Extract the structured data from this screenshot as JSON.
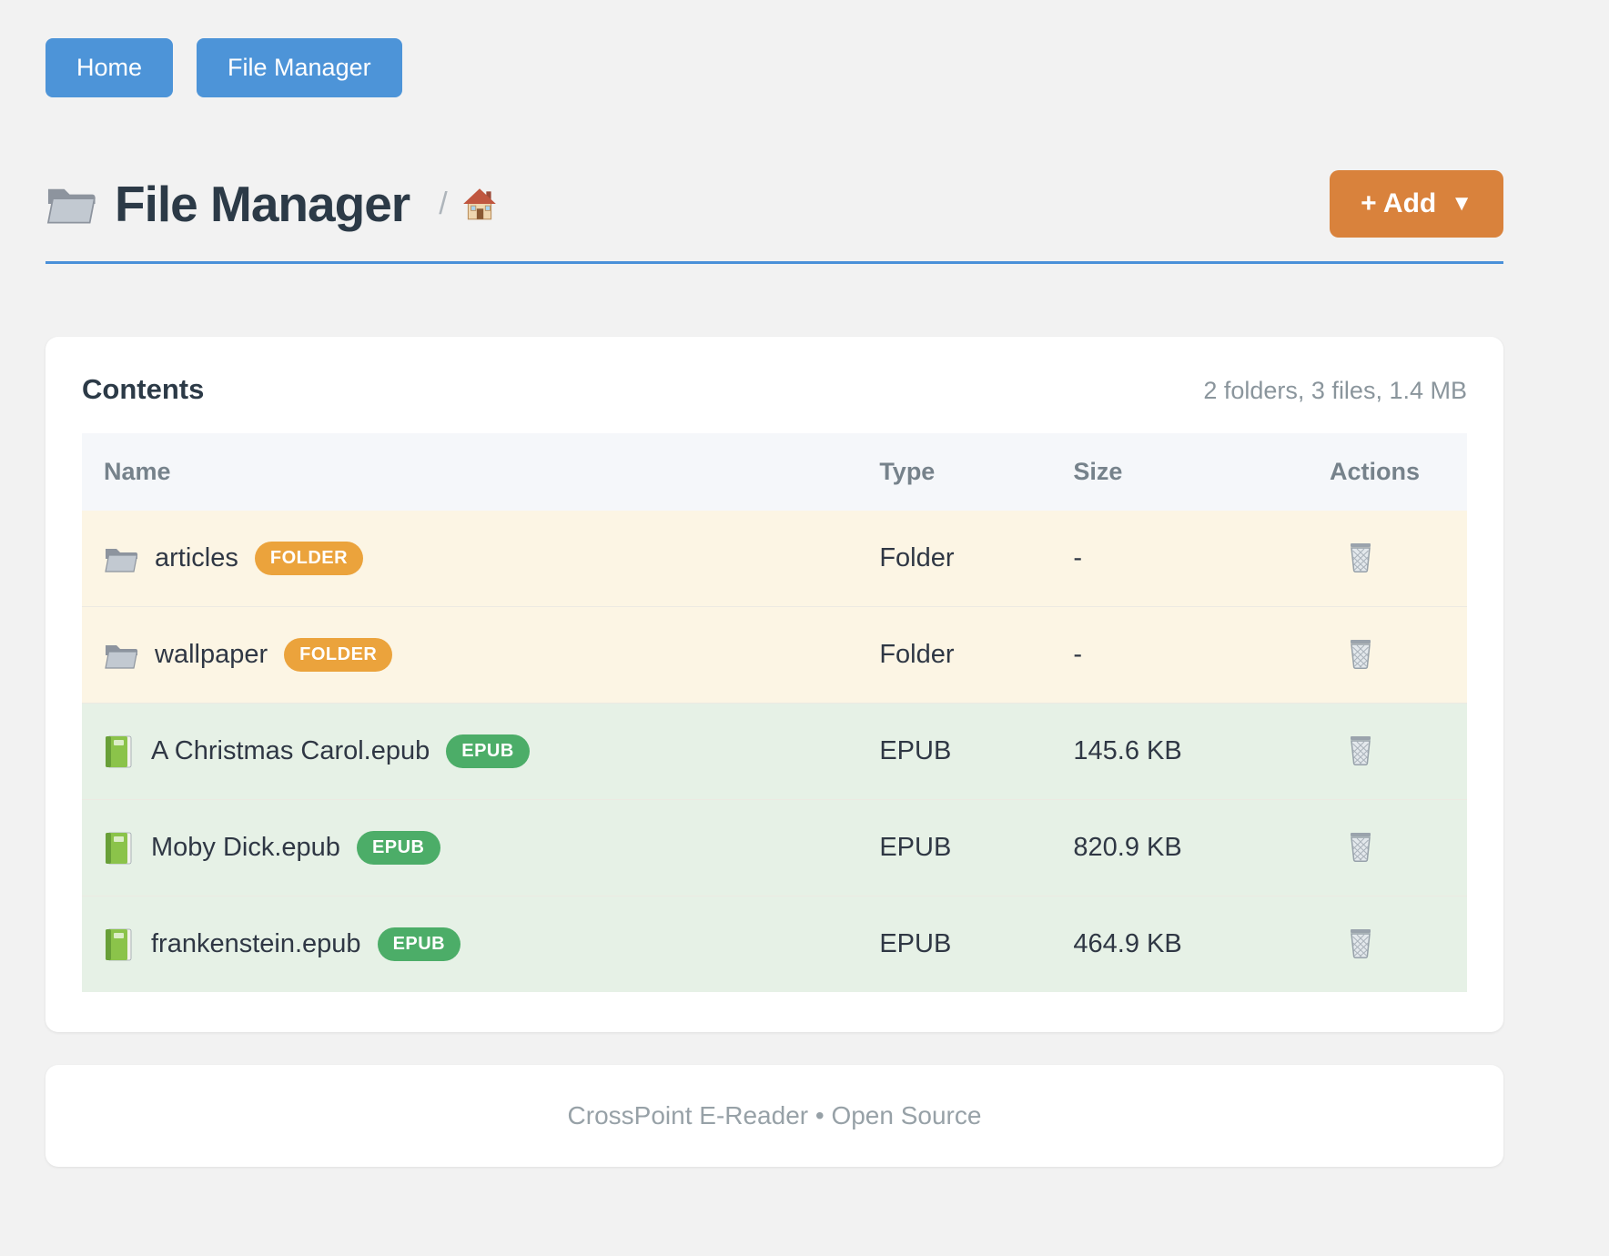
{
  "nav": {
    "home_label": "Home",
    "file_manager_label": "File Manager"
  },
  "header": {
    "title": "File Manager",
    "title_icon": "folder-icon",
    "breadcrumb_separator": "/",
    "breadcrumb_home_icon": "house-icon",
    "add_label": "+ Add",
    "add_caret": "▼"
  },
  "contents": {
    "heading": "Contents",
    "summary": "2 folders, 3 files, 1.4 MB",
    "columns": [
      "Name",
      "Type",
      "Size",
      "Actions"
    ],
    "delete_icon": "trash-icon",
    "rows": [
      {
        "icon": "folder-icon",
        "name": "articles",
        "badge": "FOLDER",
        "badge_style": "folder",
        "kind": "folder",
        "type": "Folder",
        "size": "-"
      },
      {
        "icon": "folder-icon",
        "name": "wallpaper",
        "badge": "FOLDER",
        "badge_style": "folder",
        "kind": "folder",
        "type": "Folder",
        "size": "-"
      },
      {
        "icon": "book-icon",
        "name": "A Christmas Carol.epub",
        "badge": "EPUB",
        "badge_style": "epub",
        "kind": "epub",
        "type": "EPUB",
        "size": "145.6 KB"
      },
      {
        "icon": "book-icon",
        "name": "Moby Dick.epub",
        "badge": "EPUB",
        "badge_style": "epub",
        "kind": "epub",
        "type": "EPUB",
        "size": "820.9 KB"
      },
      {
        "icon": "book-icon",
        "name": "frankenstein.epub",
        "badge": "EPUB",
        "badge_style": "epub",
        "kind": "epub",
        "type": "EPUB",
        "size": "464.9 KB"
      }
    ]
  },
  "footer": {
    "text": "CrossPoint E-Reader • Open Source"
  },
  "colors": {
    "page_bg": "#F2F2F2",
    "nav_blue": "#4D94D8",
    "add_orange": "#D9823C",
    "title_underline": "#4A90D9",
    "badge_folder": "#EBA33C",
    "badge_epub": "#4CAD68",
    "row_folder_bg": "#FCF5E4",
    "row_epub_bg": "#E6F1E6",
    "header_band": "#F5F7FA",
    "header_text": "#76828B",
    "muted": "#8A959C"
  }
}
